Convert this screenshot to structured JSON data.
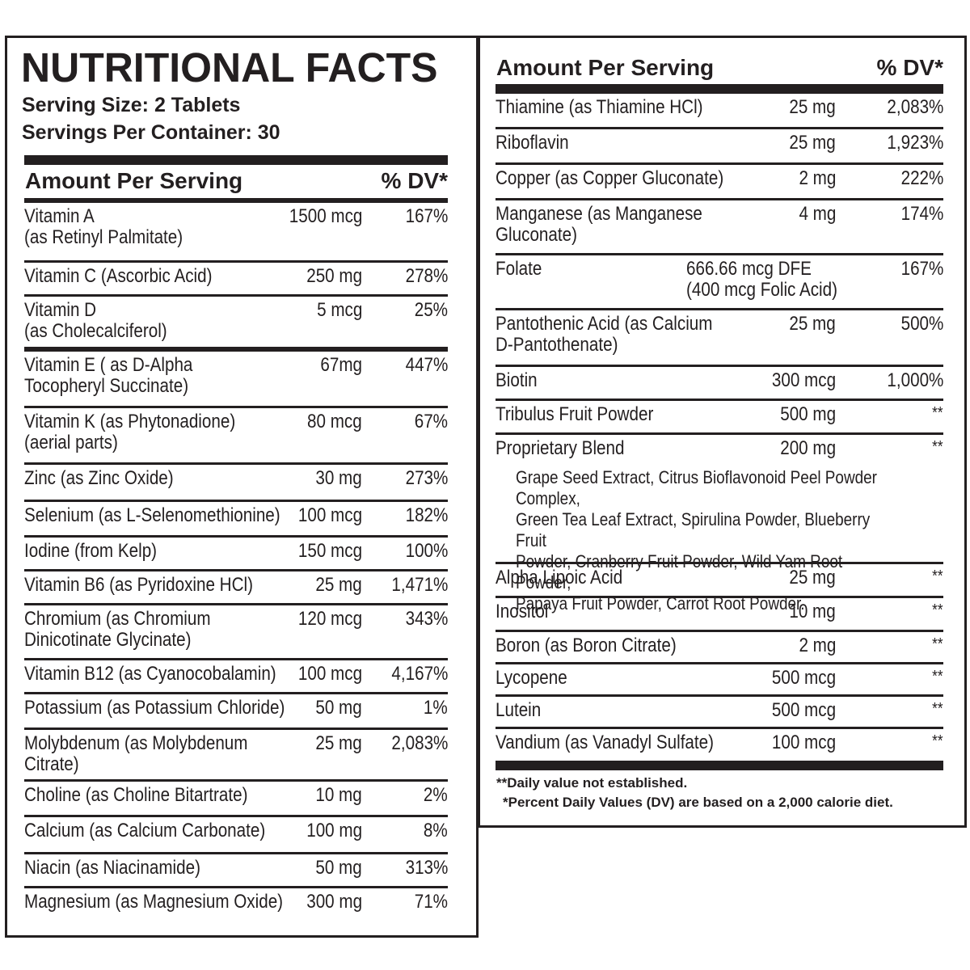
{
  "left": {
    "title": "NUTRITIONAL FACTS",
    "serving_size": "Serving Size: 2 Tablets",
    "servings_per_container": "Servings Per Container: 30",
    "header_amount": "Amount Per Serving",
    "header_dv": "% DV*",
    "rows": [
      {
        "name": "Vitamin A\n(as Retinyl Palmitate)",
        "amount": "1500 mcg",
        "dv": "167%"
      },
      {
        "name": "Vitamin C (Ascorbic Acid)",
        "amount": "250 mg",
        "dv": "278%"
      },
      {
        "name": "Vitamin D\n(as Cholecalciferol)",
        "amount": "5 mcg",
        "dv": "25%"
      },
      {
        "name": "Vitamin E ( as D-Alpha\nTocopheryl Succinate)",
        "amount": "67mg",
        "dv": "447%"
      },
      {
        "name": "Vitamin K (as Phytonadione)\n(aerial parts)",
        "amount": "80 mcg",
        "dv": "67%"
      },
      {
        "name": "Zinc (as Zinc Oxide)",
        "amount": "30 mg",
        "dv": "273%"
      },
      {
        "name": "Selenium (as L-Selenomethionine)",
        "amount": "100 mcg",
        "dv": "182%"
      },
      {
        "name": "Iodine (from Kelp)",
        "amount": "150 mcg",
        "dv": "100%"
      },
      {
        "name": "Vitamin B6 (as Pyridoxine HCl)",
        "amount": "25 mg",
        "dv": "1,471%"
      },
      {
        "name": "Chromium (as Chromium\nDinicotinate Glycinate)",
        "amount": "120 mcg",
        "dv": "343%"
      },
      {
        "name": "Vitamin B12 (as Cyanocobalamin)",
        "amount": "100 mcg",
        "dv": "4,167%"
      },
      {
        "name": "Potassium (as Potassium Chloride)",
        "amount": "50 mg",
        "dv": "1%"
      },
      {
        "name": "Molybdenum (as Molybdenum\nCitrate)",
        "amount": "25 mg",
        "dv": "2,083%"
      },
      {
        "name": "Choline (as Choline Bitartrate)",
        "amount": "10 mg",
        "dv": "2%"
      },
      {
        "name": "Calcium (as Calcium Carbonate)",
        "amount": "100 mg",
        "dv": "8%"
      },
      {
        "name": "Niacin (as Niacinamide)",
        "amount": "50 mg",
        "dv": "313%"
      },
      {
        "name": "Magnesium (as Magnesium Oxide)",
        "amount": "300 mg",
        "dv": "71%"
      }
    ]
  },
  "right": {
    "header_amount": "Amount Per Serving",
    "header_dv": "% DV*",
    "rows": [
      {
        "name": "Thiamine (as Thiamine HCl)",
        "amount": "25 mg",
        "dv": "2,083%"
      },
      {
        "name": "Riboflavin",
        "amount": "25 mg",
        "dv": "1,923%"
      },
      {
        "name": "Copper (as Copper Gluconate)",
        "amount": "2 mg",
        "dv": "222%"
      },
      {
        "name": "Manganese (as Manganese\nGluconate)",
        "amount": "4 mg",
        "dv": "174%"
      },
      {
        "name": "Folate",
        "amount": "666.66 mcg DFE\n(400 mcg Folic Acid)",
        "dv": "167%"
      },
      {
        "name": "Pantothenic Acid (as Calcium\nD-Pantothenate)",
        "amount": "25 mg",
        "dv": "500%"
      },
      {
        "name": "Biotin",
        "amount": "300 mcg",
        "dv": "1,000%"
      },
      {
        "name": "Tribulus Fruit Powder",
        "amount": "500 mg",
        "dv": "**"
      },
      {
        "name": "Proprietary Blend",
        "amount": "200 mg",
        "dv": "**"
      },
      {
        "name": "Alpha Lipoic Acid",
        "amount": "25 mg",
        "dv": "**"
      },
      {
        "name": "Inositol",
        "amount": "10 mg",
        "dv": "**"
      },
      {
        "name": "Boron (as Boron Citrate)",
        "amount": "2 mg",
        "dv": "**"
      },
      {
        "name": "Lycopene",
        "amount": "500 mcg",
        "dv": "**"
      },
      {
        "name": "Lutein",
        "amount": "500 mcg",
        "dv": "**"
      },
      {
        "name": "Vandium (as Vanadyl Sulfate)",
        "amount": "100 mcg",
        "dv": "**"
      }
    ],
    "blend_description": "Grape Seed Extract, Citrus Bioflavonoid Peel Powder Complex,\nGreen Tea Leaf Extract, Spirulina Powder, Blueberry Fruit\nPowder, Cranberry Fruit Powder, Wild Yam Root Powder,\nPapaya Fruit Powder, Carrot Root Powder.",
    "footnote_1": "**Daily value not established.",
    "footnote_2": "*Percent Daily Values (DV) are based on a 2,000 calorie diet."
  }
}
